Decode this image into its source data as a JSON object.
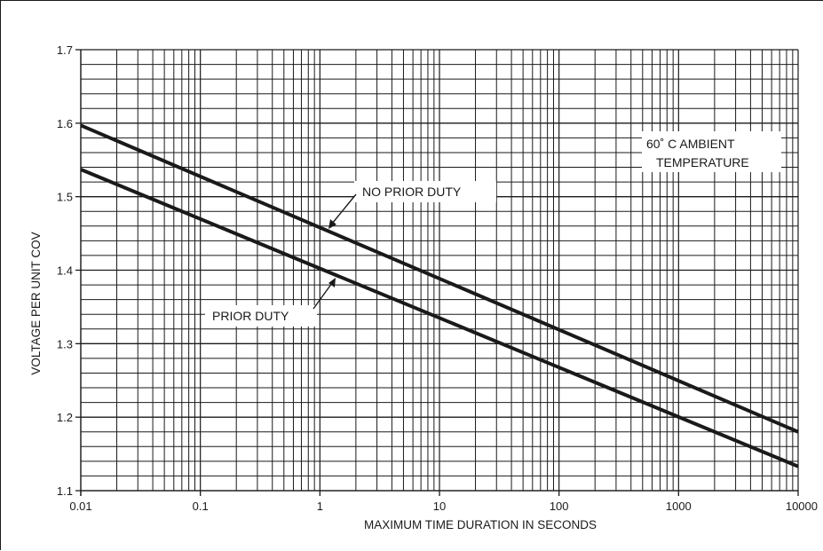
{
  "chart_data": {
    "type": "line",
    "title": "",
    "xlabel": "MAXIMUM TIME DURATION IN SECONDS",
    "ylabel": "VOLTAGE PER UNIT COV",
    "x_scale": "log",
    "xlim": [
      0.01,
      10000
    ],
    "ylim": [
      1.1,
      1.7
    ],
    "x_tick_labels": [
      "0.01",
      "0.1",
      "1",
      "10",
      "100",
      "1000",
      "10000"
    ],
    "y_tick_labels": [
      "1.1",
      "1.2",
      "1.3",
      "1.4",
      "1.5",
      "1.6",
      "1.7"
    ],
    "grid": true,
    "series": [
      {
        "name": "NO PRIOR DUTY",
        "x": [
          0.01,
          10000
        ],
        "y": [
          1.597,
          1.18
        ]
      },
      {
        "name": "PRIOR DUTY",
        "x": [
          0.01,
          10000
        ],
        "y": [
          1.537,
          1.133
        ]
      }
    ],
    "annotations": [
      {
        "text": "NO PRIOR DUTY",
        "points_to_series": 0,
        "x": 1
      },
      {
        "text": "PRIOR DUTY",
        "points_to_series": 1,
        "x": 1.3
      },
      {
        "text_lines": [
          "60˚ C AMBIENT",
          "TEMPERATURE"
        ]
      }
    ]
  }
}
